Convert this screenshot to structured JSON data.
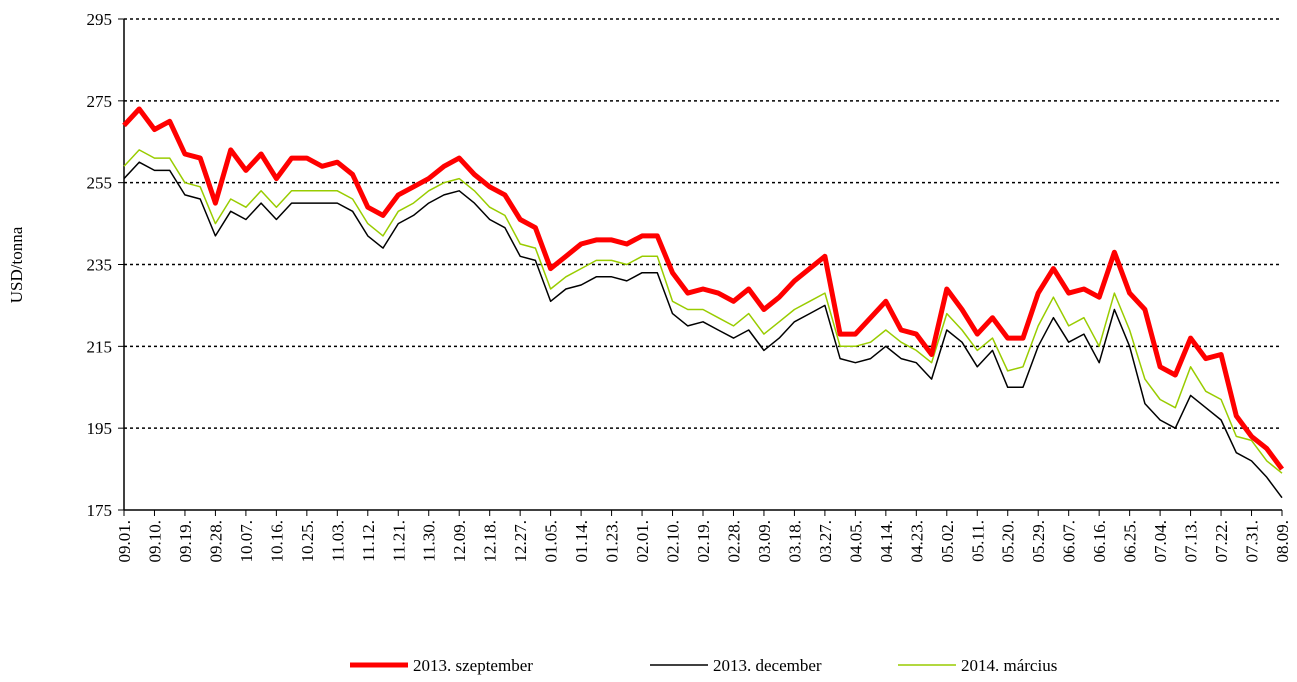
{
  "chart_data": {
    "type": "line",
    "y_label": "USD/tonna",
    "categories": [
      "09.01.",
      null,
      "09.10.",
      null,
      "09.19.",
      null,
      "09.28.",
      null,
      "10.07.",
      null,
      "10.16.",
      null,
      "10.25.",
      null,
      "11.03.",
      null,
      "11.12.",
      null,
      "11.21.",
      null,
      "11.30.",
      null,
      "12.09.",
      null,
      "12.18.",
      null,
      "12.27.",
      null,
      "01.05.",
      null,
      "01.14.",
      null,
      "01.23.",
      null,
      "02.01.",
      null,
      "02.10.",
      null,
      "02.19.",
      null,
      "02.28.",
      null,
      "03.09.",
      null,
      "03.18.",
      null,
      "03.27.",
      null,
      "04.05.",
      null,
      "04.14.",
      null,
      "04.23.",
      null,
      "05.02.",
      null,
      "05.11.",
      null,
      "05.20.",
      null,
      "05.29.",
      null,
      "06.07.",
      null,
      "06.16.",
      null,
      "06.25.",
      null,
      "07.04.",
      null,
      "07.13.",
      null,
      "07.22.",
      null,
      "07.31.",
      null,
      "08.09."
    ],
    "series": [
      {
        "name": "2013. szeptember",
        "color": "#ff0000",
        "width": 5,
        "values": [
          269,
          273,
          268,
          270,
          262,
          261,
          250,
          263,
          258,
          262,
          256,
          261,
          261,
          259,
          260,
          257,
          249,
          247,
          252,
          254,
          256,
          259,
          261,
          257,
          254,
          252,
          246,
          244,
          234,
          237,
          240,
          241,
          241,
          240,
          242,
          242,
          233,
          228,
          229,
          228,
          226,
          229,
          224,
          227,
          231,
          234,
          237,
          218,
          218,
          222,
          226,
          219,
          218,
          213,
          229,
          224,
          218,
          222,
          217,
          217,
          228,
          234,
          228,
          229,
          227,
          238,
          228,
          224,
          210,
          208,
          217,
          212,
          213,
          198,
          193,
          190,
          185
        ]
      },
      {
        "name": "2013. december",
        "color": "#000000",
        "width": 1.5,
        "values": [
          256,
          260,
          258,
          258,
          252,
          251,
          242,
          248,
          246,
          250,
          246,
          250,
          250,
          250,
          250,
          248,
          242,
          239,
          245,
          247,
          250,
          252,
          253,
          250,
          246,
          244,
          237,
          236,
          226,
          229,
          230,
          232,
          232,
          231,
          233,
          233,
          223,
          220,
          221,
          219,
          217,
          219,
          214,
          217,
          221,
          223,
          225,
          212,
          211,
          212,
          215,
          212,
          211,
          207,
          219,
          216,
          210,
          214,
          205,
          205,
          215,
          222,
          216,
          218,
          211,
          224,
          215,
          201,
          197,
          195,
          203,
          200,
          197,
          189,
          187,
          183,
          178
        ]
      },
      {
        "name": "2014. március",
        "color": "#99cc00",
        "width": 1.5,
        "values": [
          259,
          263,
          261,
          261,
          255,
          254,
          245,
          251,
          249,
          253,
          249,
          253,
          253,
          253,
          253,
          251,
          245,
          242,
          248,
          250,
          253,
          255,
          256,
          253,
          249,
          247,
          240,
          239,
          229,
          232,
          234,
          236,
          236,
          235,
          237,
          237,
          226,
          224,
          224,
          222,
          220,
          223,
          218,
          221,
          224,
          226,
          228,
          215,
          215,
          216,
          219,
          216,
          214,
          211,
          223,
          219,
          214,
          217,
          209,
          210,
          220,
          227,
          220,
          222,
          215,
          228,
          219,
          207,
          202,
          200,
          210,
          204,
          202,
          193,
          192,
          187,
          184
        ]
      }
    ],
    "ylim": [
      175,
      295
    ],
    "yticks": [
      175,
      195,
      215,
      235,
      255,
      275,
      295
    ],
    "grid": true,
    "legend": "bottom"
  }
}
